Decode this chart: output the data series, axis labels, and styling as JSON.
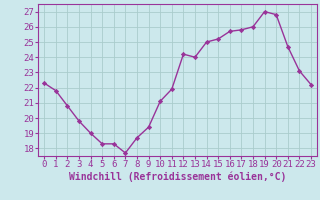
{
  "x": [
    0,
    1,
    2,
    3,
    4,
    5,
    6,
    7,
    8,
    9,
    10,
    11,
    12,
    13,
    14,
    15,
    16,
    17,
    18,
    19,
    20,
    21,
    22,
    23
  ],
  "y": [
    22.3,
    21.8,
    20.8,
    19.8,
    19.0,
    18.3,
    18.3,
    17.7,
    18.7,
    19.4,
    21.1,
    21.9,
    24.2,
    24.0,
    25.0,
    25.2,
    25.7,
    25.8,
    26.0,
    27.0,
    26.8,
    24.7,
    23.1,
    22.2
  ],
  "line_color": "#993399",
  "marker": "D",
  "marker_size": 2.2,
  "line_width": 1.0,
  "xlabel": "Windchill (Refroidissement éolien,°C)",
  "xlabel_fontsize": 7,
  "ylabel_ticks": [
    18,
    19,
    20,
    21,
    22,
    23,
    24,
    25,
    26,
    27
  ],
  "xlim": [
    -0.5,
    23.5
  ],
  "ylim": [
    17.5,
    27.5
  ],
  "background_color": "#cce8ec",
  "grid_color": "#aacccc",
  "tick_color": "#993399",
  "tick_fontsize": 6.5,
  "xtick_labels": [
    "0",
    "1",
    "2",
    "3",
    "4",
    "5",
    "6",
    "7",
    "8",
    "9",
    "10",
    "11",
    "12",
    "13",
    "14",
    "15",
    "16",
    "17",
    "18",
    "19",
    "20",
    "21",
    "22",
    "23"
  ]
}
